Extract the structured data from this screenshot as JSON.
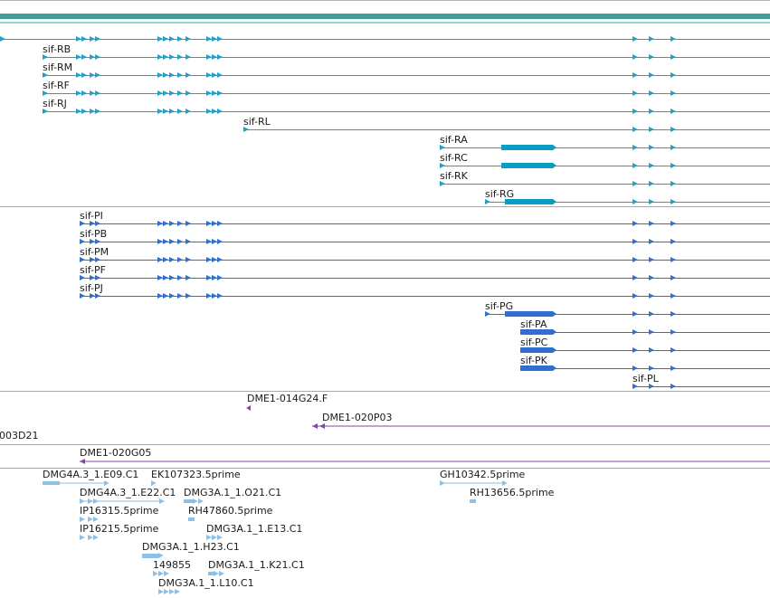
{
  "colors": {
    "header_bar": "#3f9e9a",
    "separator": "#a9a9a9",
    "transcript": "#1ea2c8",
    "transcript_cds": "#0a9cc4",
    "protein": "#2f6fd0",
    "clone": "#7e4aa6",
    "est": "#8cc0e6"
  },
  "feature_groups": [
    {
      "id": "transcripts",
      "color_key": "transcript",
      "features": [
        {
          "label": "",
          "start": 0,
          "end": 851,
          "row": 0,
          "arrows": true
        },
        {
          "label": "sif-RB",
          "start": 47,
          "end": 851,
          "row": 1,
          "arrows": true
        },
        {
          "label": "sif-RM",
          "start": 47,
          "end": 851,
          "row": 2,
          "arrows": true
        },
        {
          "label": "sif-RF",
          "start": 47,
          "end": 851,
          "row": 3,
          "arrows": true
        },
        {
          "label": "sif-RJ",
          "start": 47,
          "end": 851,
          "row": 4,
          "arrows": true
        },
        {
          "label": "sif-RL",
          "start": 269,
          "end": 851,
          "row": 5,
          "arrows": true
        },
        {
          "label": "sif-RA",
          "start": 486,
          "end": 851,
          "row": 6,
          "arrows": true,
          "block": [
            554,
            615
          ]
        },
        {
          "label": "sif-RC",
          "start": 486,
          "end": 851,
          "row": 7,
          "arrows": true,
          "block": [
            554,
            615
          ]
        },
        {
          "label": "sif-RK",
          "start": 486,
          "end": 851,
          "row": 8,
          "arrows": true
        },
        {
          "label": "sif-RG",
          "start": 536,
          "end": 851,
          "row": 9,
          "arrows": true,
          "block": [
            558,
            615
          ]
        }
      ]
    },
    {
      "id": "proteins",
      "color_key": "protein",
      "features": [
        {
          "label": "sif-PI",
          "start": 88,
          "end": 851,
          "row": 0,
          "arrows": true
        },
        {
          "label": "sif-PB",
          "start": 88,
          "end": 851,
          "row": 1,
          "arrows": true
        },
        {
          "label": "sif-PM",
          "start": 88,
          "end": 851,
          "row": 2,
          "arrows": true
        },
        {
          "label": "sif-PF",
          "start": 88,
          "end": 851,
          "row": 3,
          "arrows": true
        },
        {
          "label": "sif-PJ",
          "start": 88,
          "end": 851,
          "row": 4,
          "arrows": true
        },
        {
          "label": "sif-PG",
          "start": 536,
          "end": 851,
          "row": 5,
          "arrows": true,
          "block": [
            558,
            615
          ]
        },
        {
          "label": "sif-PA",
          "start": 575,
          "end": 851,
          "row": 6,
          "arrows": true,
          "block": [
            575,
            615
          ]
        },
        {
          "label": "sif-PC",
          "start": 575,
          "end": 851,
          "row": 7,
          "arrows": true,
          "block": [
            575,
            615
          ]
        },
        {
          "label": "sif-PK",
          "start": 575,
          "end": 851,
          "row": 8,
          "arrows": true,
          "block": [
            575,
            615
          ]
        },
        {
          "label": "sif-PL",
          "start": 699,
          "end": 851,
          "row": 9,
          "arrows": true
        }
      ]
    }
  ],
  "clones": [
    {
      "label": "DME1-014G24.F"
    },
    {
      "label": "DME1-020P03"
    },
    {
      "label": "003D21"
    },
    {
      "label": "DME1-020G05"
    }
  ],
  "ests": [
    {
      "label": "DMG4A.3_1.E09.C1"
    },
    {
      "label": "EK107323.5prime"
    },
    {
      "label": "GH10342.5prime"
    },
    {
      "label": "DMG4A.3_1.E22.C1"
    },
    {
      "label": "DMG3A.1_1.O21.C1"
    },
    {
      "label": "RH13656.5prime"
    },
    {
      "label": "IP16315.5prime"
    },
    {
      "label": "RH47860.5prime"
    },
    {
      "label": "IP16215.5prime"
    },
    {
      "label": "DMG3A.1_1.E13.C1"
    },
    {
      "label": "DMG3A.1_1.H23.C1"
    },
    {
      "label": "149855"
    },
    {
      "label": "DMG3A.1_1.K21.C1"
    },
    {
      "label": "DMG3A.1_1.L10.C1"
    }
  ]
}
